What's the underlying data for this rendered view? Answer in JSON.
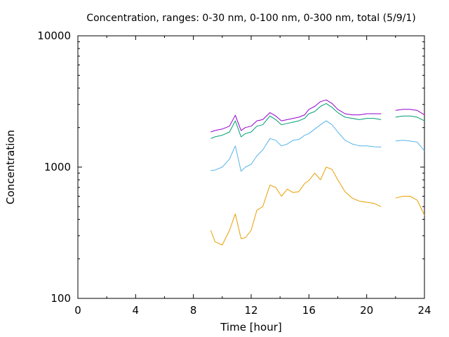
{
  "chart_data": {
    "type": "line",
    "title": "Concentration, ranges: 0-30 nm, 0-100 nm, 0-300 nm, total (5/9/1)",
    "xlabel": "Time [hour]",
    "ylabel": "Concentration",
    "xlim": [
      0,
      24
    ],
    "ylim": [
      100,
      10000
    ],
    "yscale": "log",
    "x_ticks": [
      0,
      4,
      8,
      12,
      16,
      20,
      24
    ],
    "x_tick_labels": [
      "0",
      "4",
      "8",
      "12",
      "16",
      "20",
      "24"
    ],
    "y_ticks": [
      100,
      1000,
      10000
    ],
    "y_tick_labels": [
      "100",
      "1000",
      "10000"
    ],
    "grid": false,
    "legend": "none",
    "x": [
      9.2,
      9.5,
      10.0,
      10.5,
      10.9,
      11.3,
      11.6,
      12.0,
      12.4,
      12.8,
      13.3,
      13.7,
      14.1,
      14.5,
      14.9,
      15.3,
      15.7,
      16.0,
      16.4,
      16.8,
      17.2,
      17.6,
      18.0,
      18.5,
      19.0,
      19.5,
      20.0,
      20.5,
      21.0,
      21.4,
      22.0,
      22.5,
      23.0,
      23.5,
      24.0
    ],
    "series": [
      {
        "color": "#e69f00",
        "values": [
          330,
          270,
          255,
          330,
          440,
          285,
          290,
          330,
          470,
          500,
          730,
          700,
          600,
          680,
          640,
          650,
          750,
          790,
          900,
          800,
          1000,
          960,
          800,
          650,
          580,
          550,
          540,
          530,
          500,
          null,
          580,
          600,
          600,
          560,
          430
        ]
      },
      {
        "color": "#56b4e9",
        "values": [
          940,
          950,
          1000,
          1150,
          1450,
          930,
          1000,
          1050,
          1220,
          1350,
          1650,
          1600,
          1450,
          1500,
          1600,
          1620,
          1750,
          1800,
          1950,
          2100,
          2250,
          2100,
          1850,
          1600,
          1500,
          1450,
          1450,
          1430,
          1420,
          null,
          1580,
          1600,
          1580,
          1550,
          1330
        ]
      },
      {
        "color": "#009e73",
        "values": [
          1650,
          1700,
          1750,
          1850,
          2250,
          1700,
          1800,
          1850,
          2050,
          2100,
          2450,
          2300,
          2100,
          2150,
          2200,
          2250,
          2350,
          2550,
          2650,
          2900,
          3050,
          2850,
          2600,
          2400,
          2350,
          2300,
          2350,
          2350,
          2300,
          null,
          2400,
          2450,
          2450,
          2400,
          2250
        ]
      },
      {
        "color": "#9400d3",
        "values": [
          1850,
          1900,
          1950,
          2050,
          2480,
          1900,
          2000,
          2050,
          2250,
          2300,
          2600,
          2450,
          2250,
          2300,
          2350,
          2400,
          2500,
          2750,
          2900,
          3150,
          3250,
          3050,
          2750,
          2550,
          2500,
          2500,
          2550,
          2550,
          2550,
          null,
          2700,
          2750,
          2750,
          2700,
          2500
        ]
      }
    ]
  }
}
